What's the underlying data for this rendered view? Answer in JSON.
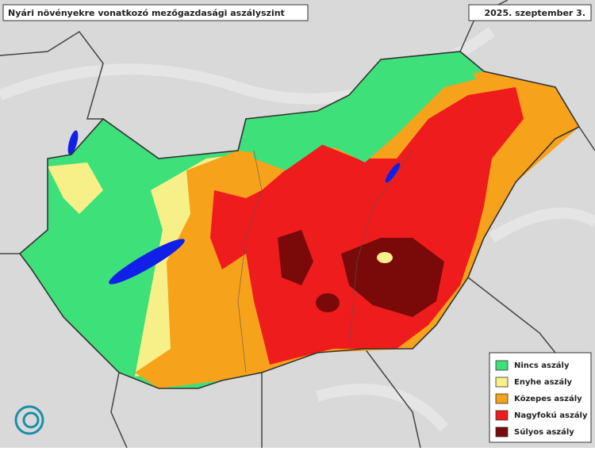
{
  "header": {
    "title": "Nyári növényekre vonatkozó mezőgazdasági aszályszint",
    "date": "2025. szeptember 3."
  },
  "legend": {
    "items": [
      {
        "label": "Nincs aszály",
        "color": "#3ee07a"
      },
      {
        "label": "Enyhe aszály",
        "color": "#f7f088"
      },
      {
        "label": "Közepes aszály",
        "color": "#f7a21b"
      },
      {
        "label": "Nagyfokú aszály",
        "color": "#ee1c1c"
      },
      {
        "label": "Súlyos aszály",
        "color": "#7a0a0a"
      }
    ]
  }
}
